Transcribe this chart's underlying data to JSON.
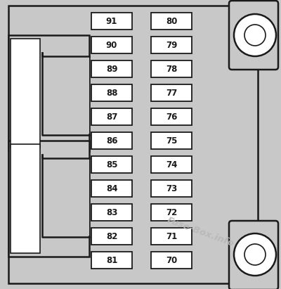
{
  "bg_color": "#c8c8c8",
  "white_color": "#ffffff",
  "outline_color": "#1a1a1a",
  "watermark_text": "Fuse-Box.info",
  "left_fuses": [
    91,
    90,
    89,
    88,
    87,
    86,
    85,
    84,
    83,
    82,
    81
  ],
  "right_fuses": [
    80,
    79,
    78,
    77,
    76,
    75,
    74,
    73,
    72,
    71,
    70
  ],
  "fig_width": 4.0,
  "fig_height": 4.11,
  "dpi": 100
}
